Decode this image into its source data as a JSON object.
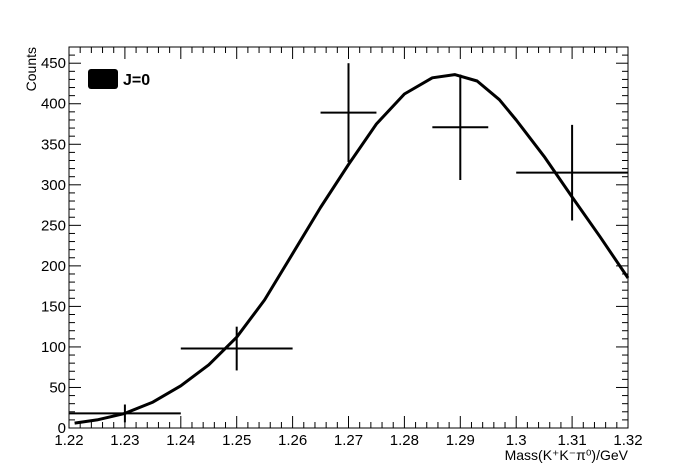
{
  "chart_data": {
    "type": "scatter",
    "xlabel": "Mass(K⁺K⁻π⁰)/GeV",
    "ylabel": "Counts",
    "xlim": [
      1.22,
      1.32
    ],
    "ylim": [
      0,
      470
    ],
    "x_ticks": [
      "1.22",
      "1.23",
      "1.24",
      "1.25",
      "1.26",
      "1.27",
      "1.28",
      "1.29",
      "1.3",
      "1.31",
      "1.32"
    ],
    "y_ticks": [
      "0",
      "50",
      "100",
      "150",
      "200",
      "250",
      "300",
      "350",
      "400",
      "450"
    ],
    "legend": {
      "label": "J=0",
      "position": "top-left"
    },
    "series": [
      {
        "name": "J=0",
        "kind": "fit-curve",
        "color": "#000000",
        "x": [
          1.221,
          1.225,
          1.23,
          1.235,
          1.24,
          1.245,
          1.25,
          1.255,
          1.26,
          1.265,
          1.27,
          1.275,
          1.28,
          1.285,
          1.289,
          1.293,
          1.297,
          1.3,
          1.305,
          1.31,
          1.315,
          1.32
        ],
        "y": [
          6,
          10,
          18,
          32,
          52,
          78,
          112,
          158,
          215,
          272,
          325,
          375,
          412,
          432,
          436,
          428,
          405,
          380,
          335,
          285,
          236,
          185
        ]
      }
    ],
    "points": {
      "color": "#000000",
      "x": [
        1.23,
        1.25,
        1.27,
        1.29,
        1.31
      ],
      "y": [
        18,
        98,
        389,
        371,
        315
      ],
      "x_err": [
        0.01,
        0.01,
        0.005,
        0.005,
        0.01
      ],
      "y_err": [
        11,
        27,
        61,
        65,
        59
      ]
    },
    "grid": false
  }
}
